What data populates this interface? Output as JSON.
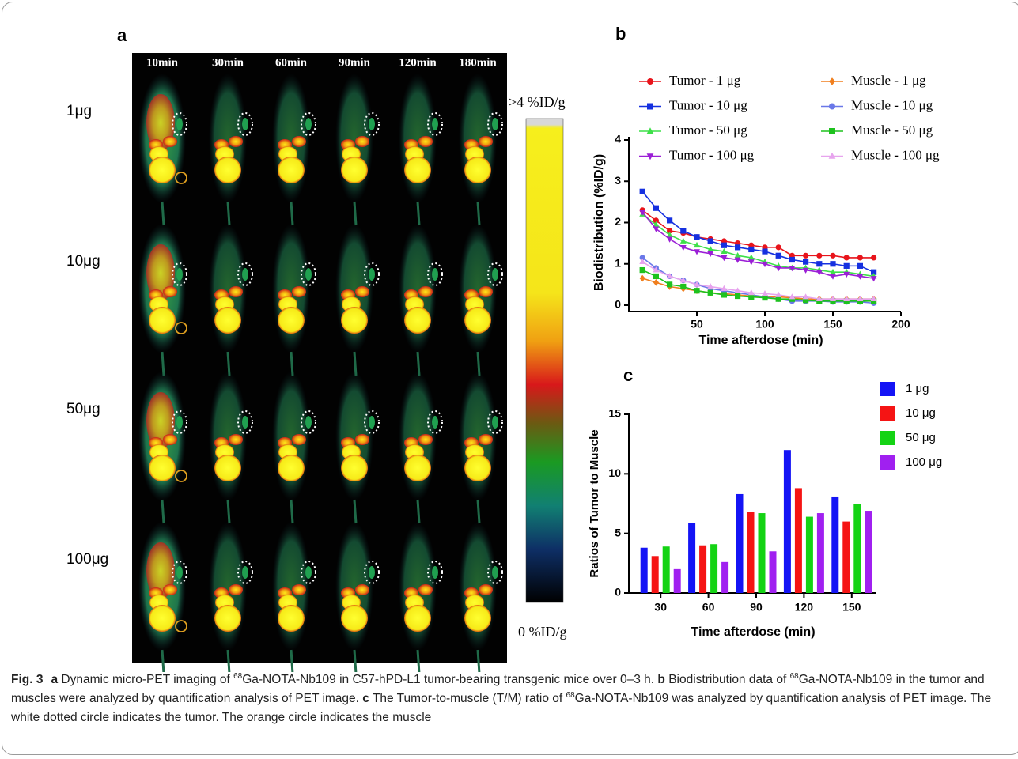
{
  "panel_a": {
    "label": "a",
    "times": [
      "10min",
      "30min",
      "60min",
      "90min",
      "120min",
      "180min"
    ],
    "doses": [
      "1μg",
      "10μg",
      "50μg",
      "100μg"
    ],
    "scale_max": ">4 %ID/g",
    "scale_min": "0 %ID/g"
  },
  "chart_data": [
    {
      "type": "line",
      "label": "b",
      "ylabel": "Biodistribution (%ID/g)",
      "xlabel": "Time afterdose (min)",
      "x": [
        10,
        20,
        30,
        40,
        50,
        60,
        70,
        80,
        90,
        100,
        110,
        120,
        130,
        140,
        150,
        160,
        170,
        180
      ],
      "xlim": [
        0,
        200
      ],
      "xticks": [
        50,
        100,
        150,
        200
      ],
      "ylim": [
        0,
        4
      ],
      "yticks": [
        0,
        1,
        2,
        3,
        4
      ],
      "series": [
        {
          "name": "Tumor - 1 μg",
          "color": "#e8141b",
          "marker": "circle",
          "values": [
            2.3,
            2.05,
            1.8,
            1.75,
            1.65,
            1.6,
            1.55,
            1.5,
            1.45,
            1.4,
            1.4,
            1.2,
            1.2,
            1.2,
            1.2,
            1.15,
            1.15,
            1.15
          ]
        },
        {
          "name": "Tumor - 10 μg",
          "color": "#1530e0",
          "marker": "square",
          "values": [
            2.75,
            2.35,
            2.05,
            1.8,
            1.65,
            1.55,
            1.45,
            1.4,
            1.35,
            1.3,
            1.2,
            1.1,
            1.05,
            1.0,
            1.0,
            0.95,
            0.95,
            0.8
          ]
        },
        {
          "name": "Tumor - 50 μg",
          "color": "#3ee04a",
          "marker": "triangle",
          "values": [
            2.2,
            1.95,
            1.7,
            1.55,
            1.45,
            1.35,
            1.3,
            1.2,
            1.15,
            1.05,
            0.95,
            0.9,
            0.9,
            0.85,
            0.8,
            0.8,
            0.75,
            0.7
          ]
        },
        {
          "name": "Tumor - 100 μg",
          "color": "#9b1fd6",
          "marker": "triangle-down",
          "values": [
            2.25,
            1.85,
            1.6,
            1.4,
            1.3,
            1.25,
            1.15,
            1.1,
            1.05,
            1.0,
            0.9,
            0.9,
            0.85,
            0.8,
            0.7,
            0.75,
            0.7,
            0.65
          ]
        },
        {
          "name": "Muscle - 1 μg",
          "color": "#f07f1e",
          "marker": "diamond",
          "values": [
            0.65,
            0.55,
            0.45,
            0.4,
            0.35,
            0.3,
            0.28,
            0.25,
            0.22,
            0.2,
            0.2,
            0.18,
            0.15,
            0.15,
            0.15,
            0.15,
            0.15,
            0.15
          ]
        },
        {
          "name": "Muscle - 10 μg",
          "color": "#6a78e8",
          "marker": "circle",
          "values": [
            1.15,
            0.9,
            0.7,
            0.6,
            0.5,
            0.4,
            0.35,
            0.3,
            0.25,
            0.2,
            0.15,
            0.1,
            0.1,
            0.1,
            0.08,
            0.08,
            0.08,
            0.05
          ]
        },
        {
          "name": "Muscle - 50 μg",
          "color": "#1ec21e",
          "marker": "square",
          "values": [
            0.85,
            0.7,
            0.5,
            0.45,
            0.35,
            0.3,
            0.25,
            0.22,
            0.2,
            0.18,
            0.15,
            0.15,
            0.12,
            0.1,
            0.1,
            0.1,
            0.1,
            0.1
          ]
        },
        {
          "name": "Muscle - 100 μg",
          "color": "#e7a4ee",
          "marker": "triangle",
          "values": [
            1.05,
            0.85,
            0.7,
            0.6,
            0.5,
            0.45,
            0.4,
            0.35,
            0.3,
            0.28,
            0.25,
            0.2,
            0.2,
            0.15,
            0.15,
            0.15,
            0.15,
            0.15
          ]
        }
      ]
    },
    {
      "type": "bar",
      "label": "c",
      "ylabel": "Ratios of Tumor to Muscle",
      "xlabel": "Time afterdose (min)",
      "categories": [
        "30",
        "60",
        "90",
        "120",
        "150"
      ],
      "ylim": [
        0,
        15
      ],
      "yticks": [
        0,
        5,
        10,
        15
      ],
      "series": [
        {
          "name": "1 μg",
          "color": "#1414f5",
          "values": [
            3.8,
            5.9,
            8.3,
            12.0,
            8.1
          ]
        },
        {
          "name": "10 μg",
          "color": "#f51414",
          "values": [
            3.1,
            4.0,
            6.8,
            8.8,
            6.0
          ]
        },
        {
          "name": "50 μg",
          "color": "#14d314",
          "values": [
            3.9,
            4.1,
            6.7,
            6.4,
            7.5
          ]
        },
        {
          "name": "100 μg",
          "color": "#a020f0",
          "values": [
            2.0,
            2.6,
            3.5,
            6.7,
            6.9
          ]
        }
      ]
    }
  ],
  "caption": {
    "segments": [
      {
        "text": "Fig. 3",
        "kind": "bold"
      },
      {
        "text": "a",
        "kind": "bold"
      },
      {
        "text": " Dynamic micro-PET imaging of ",
        "kind": "plain"
      },
      {
        "text": "68",
        "kind": "sup"
      },
      {
        "text": "Ga-NOTA-Nb109 in C57-hPD-L1 tumor-bearing transgenic mice over 0–3 h. ",
        "kind": "plain"
      },
      {
        "text": "b",
        "kind": "bold"
      },
      {
        "text": " Biodistribution data of ",
        "kind": "plain"
      },
      {
        "text": "68",
        "kind": "sup"
      },
      {
        "text": "Ga-NOTA-Nb109 in the tumor and muscles were analyzed by quantification analysis of PET image. ",
        "kind": "plain"
      },
      {
        "text": "c",
        "kind": "bold"
      },
      {
        "text": " The Tumor-to-muscle (T/M) ratio of ",
        "kind": "plain"
      },
      {
        "text": "68",
        "kind": "sup"
      },
      {
        "text": "Ga-NOTA-Nb109 was analyzed by quantification analysis of PET image. The white dotted circle indicates the tumor. The orange circle indicates the muscle",
        "kind": "plain"
      }
    ]
  }
}
